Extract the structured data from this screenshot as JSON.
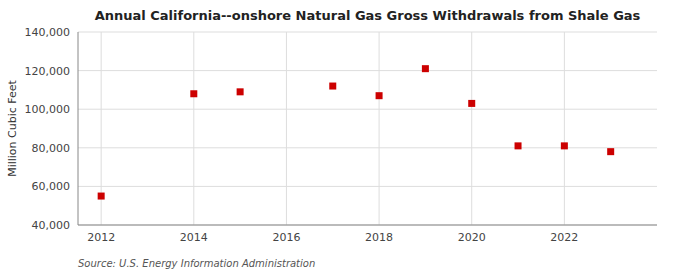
{
  "chart_data": {
    "type": "scatter",
    "title": "Annual California--onshore Natural Gas Gross Withdrawals from Shale Gas",
    "ylabel": "Million Cubic Feet",
    "source": "Source: U.S. Energy Information Administration",
    "x": [
      2012,
      2014,
      2015,
      2017,
      2018,
      2019,
      2020,
      2021,
      2022,
      2023
    ],
    "values": [
      55000,
      108000,
      109000,
      112000,
      107000,
      121000,
      103000,
      81000,
      81000,
      78000
    ],
    "color": "#cc0000",
    "marker": "square",
    "xlim": [
      2011.5,
      2024
    ],
    "xticks": [
      2012,
      2014,
      2016,
      2018,
      2020,
      2022
    ],
    "ylim": [
      40000,
      140000
    ],
    "yticks": [
      {
        "value": 40000,
        "label": "40,000"
      },
      {
        "value": 60000,
        "label": "60,000"
      },
      {
        "value": 80000,
        "label": "80,000"
      },
      {
        "value": 100000,
        "label": "100,000"
      },
      {
        "value": 120000,
        "label": "120,000"
      },
      {
        "value": 140000,
        "label": "140,000"
      }
    ],
    "grid": true
  }
}
